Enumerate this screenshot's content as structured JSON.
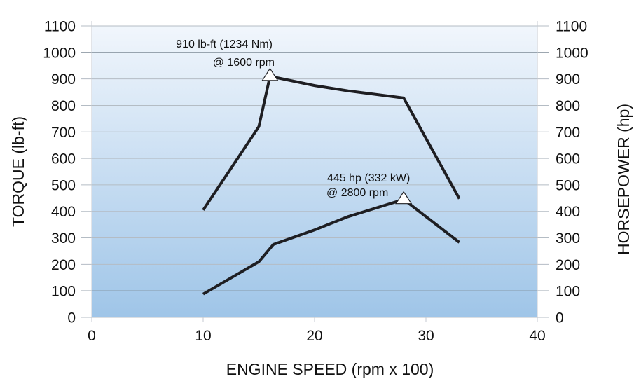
{
  "chart_data": {
    "type": "line",
    "title": "",
    "xlabel": "ENGINE SPEED (rpm x 100)",
    "ylabel_left": "TORQUE (lb-ft)",
    "ylabel_right": "HORSEPOWER (hp)",
    "xlim": [
      0,
      40
    ],
    "ylim": [
      0,
      1100
    ],
    "x_ticks": [
      "0",
      "10",
      "20",
      "30",
      "40"
    ],
    "y_ticks": [
      "0",
      "100",
      "200",
      "300",
      "400",
      "500",
      "600",
      "700",
      "800",
      "900",
      "1000",
      "1100"
    ],
    "grid": true,
    "background": {
      "top": "#f1f6fc",
      "bottom": "#9fc5e8"
    },
    "series": [
      {
        "name": "Torque",
        "x": [
          10,
          15,
          16,
          20,
          23,
          28,
          33
        ],
        "y": [
          405,
          720,
          910,
          875,
          855,
          828,
          448
        ],
        "color": "#1e1e22"
      },
      {
        "name": "Horsepower",
        "x": [
          10,
          15,
          16.3,
          20,
          23,
          28,
          33
        ],
        "y": [
          88,
          210,
          275,
          330,
          380,
          445,
          283
        ],
        "color": "#1e1e22"
      }
    ],
    "annotations": [
      {
        "series": "Torque",
        "x": 16,
        "y": 910,
        "line1": "910 lb-ft (1234 Nm)",
        "line2": "@ 1600 rpm"
      },
      {
        "series": "Horsepower",
        "x": 28,
        "y": 445,
        "line1": "445 hp (332 kW)",
        "line2": "@ 2800 rpm"
      }
    ]
  }
}
